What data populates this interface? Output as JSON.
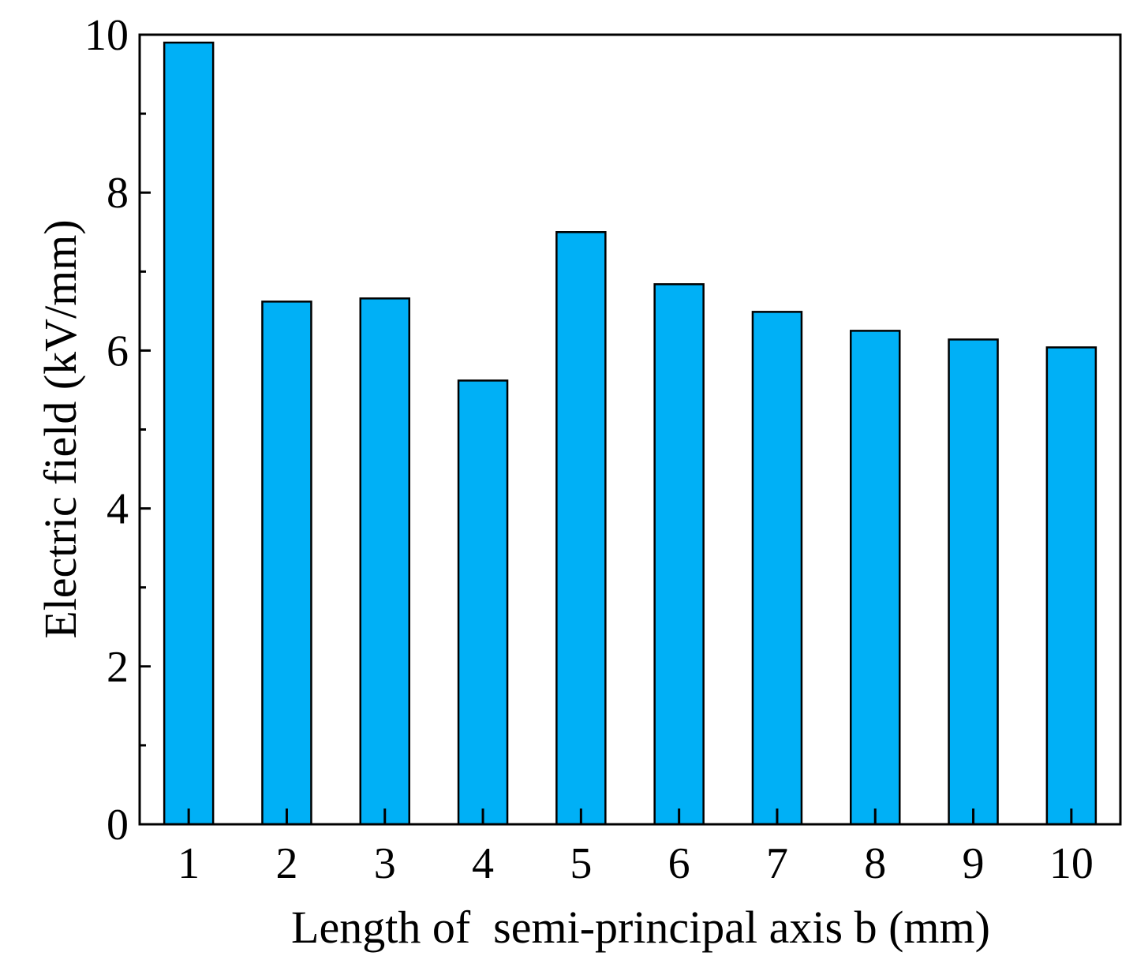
{
  "chart_data": {
    "type": "bar",
    "title": "",
    "xlabel": "Length of  semi-principal axis b (mm)",
    "ylabel": "Electric field (kV/mm)",
    "categories": [
      "1",
      "2",
      "3",
      "4",
      "5",
      "6",
      "7",
      "8",
      "9",
      "10"
    ],
    "values": [
      9.9,
      6.62,
      6.66,
      5.62,
      7.5,
      6.84,
      6.49,
      6.25,
      6.14,
      6.04
    ],
    "ylim": [
      0,
      10
    ],
    "yticks": [
      "0",
      "2",
      "4",
      "6",
      "8",
      "10"
    ],
    "grid": false,
    "legend": "none",
    "colors": {
      "bar_fill": "#00b0f6",
      "bar_stroke": "#000000",
      "axis": "#000000"
    }
  }
}
